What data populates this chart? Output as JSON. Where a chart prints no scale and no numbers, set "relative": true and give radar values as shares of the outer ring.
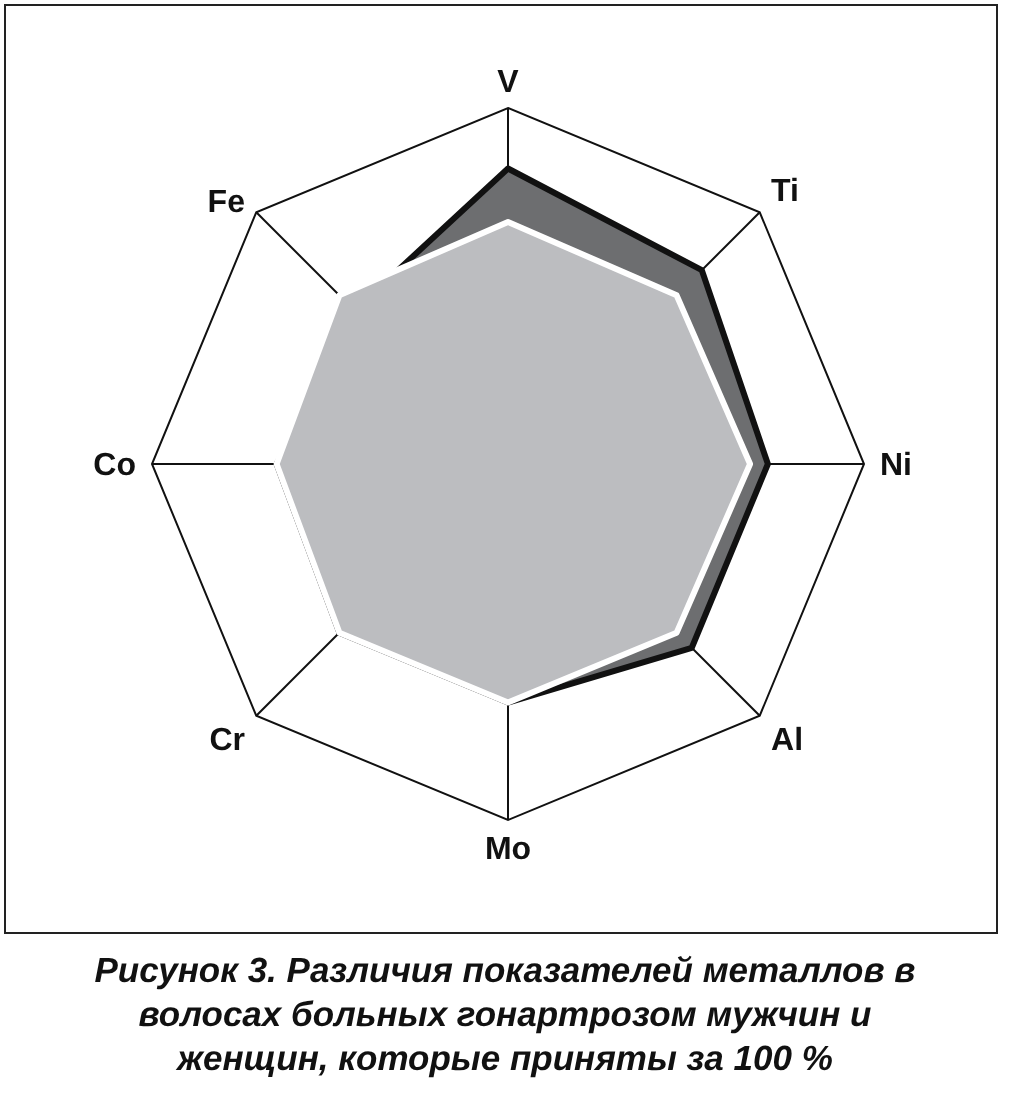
{
  "chart_data": {
    "type": "radar",
    "title": "Рисунок 3. Различия показателей металлов в волосах больных гонартрозом мужчин и женщин, которые приняты за 100 %",
    "categories": [
      "V",
      "Ti",
      "Ni",
      "Al",
      "Mo",
      "Cr",
      "Co",
      "Fe"
    ],
    "relative": true,
    "grid": true,
    "marker": "none",
    "series": [
      {
        "color": "#6d6e70",
        "values": [
          0.83,
          0.77,
          0.73,
          0.73,
          0.67,
          0.67,
          0.65,
          0.61
        ]
      },
      {
        "color": "#bcbdc0",
        "values": [
          0.68,
          0.67,
          0.68,
          0.67,
          0.67,
          0.67,
          0.65,
          0.67
        ]
      }
    ]
  }
}
